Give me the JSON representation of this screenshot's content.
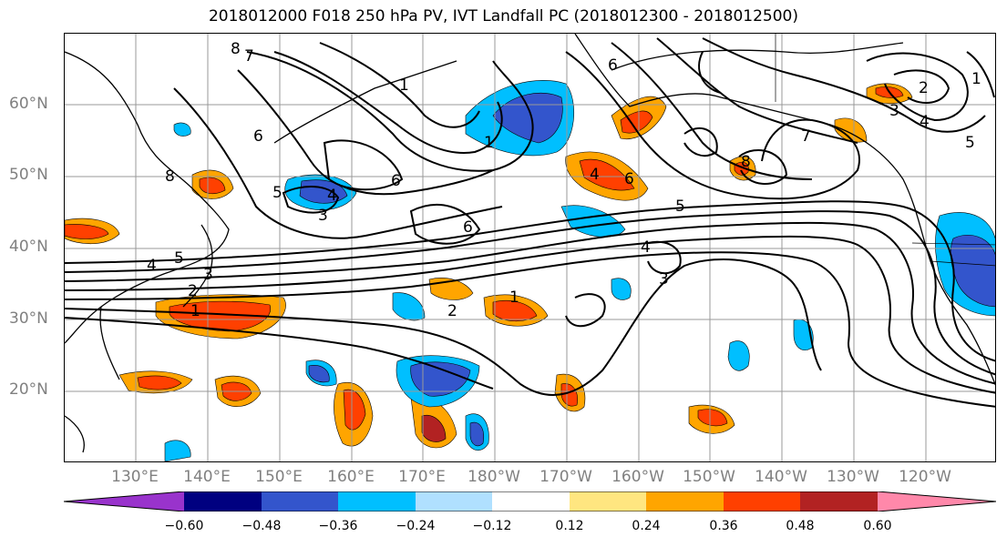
{
  "title": "2018012000 F018 250 hPa PV, IVT Landfall PC (2018012300 - 2018012500)",
  "lat_labels": [
    "60°N",
    "50°N",
    "40°N",
    "30°N",
    "20°N"
  ],
  "lon_labels": [
    "130°E",
    "140°E",
    "150°E",
    "160°E",
    "170°E",
    "180°W",
    "170°W",
    "160°W",
    "150°W",
    "140°W",
    "130°W",
    "120°W"
  ],
  "colorbar": {
    "colors": [
      "#9933cc",
      "#000080",
      "#3355cc",
      "#00bfff",
      "#b0e0ff",
      "#ffffff",
      "#ffe680",
      "#ffa500",
      "#ff4000",
      "#b22222",
      "#ff88aa"
    ],
    "ticks": [
      "−0.60",
      "−0.48",
      "−0.36",
      "−0.24",
      "−0.12",
      "0.12",
      "0.24",
      "0.36",
      "0.48",
      "0.60"
    ]
  },
  "contour_labels": [
    "8",
    "7",
    "6",
    "8",
    "5",
    "4",
    "3",
    "6",
    "6",
    "5",
    "4",
    "3",
    "2",
    "1",
    "1",
    "2",
    "1",
    "1",
    "4",
    "3",
    "6",
    "5",
    "4",
    "2",
    "1",
    "3",
    "4",
    "5",
    "7",
    "8",
    "6"
  ],
  "shaded_regions": "positive (warm) and negative (cool) PC anomaly patches"
}
